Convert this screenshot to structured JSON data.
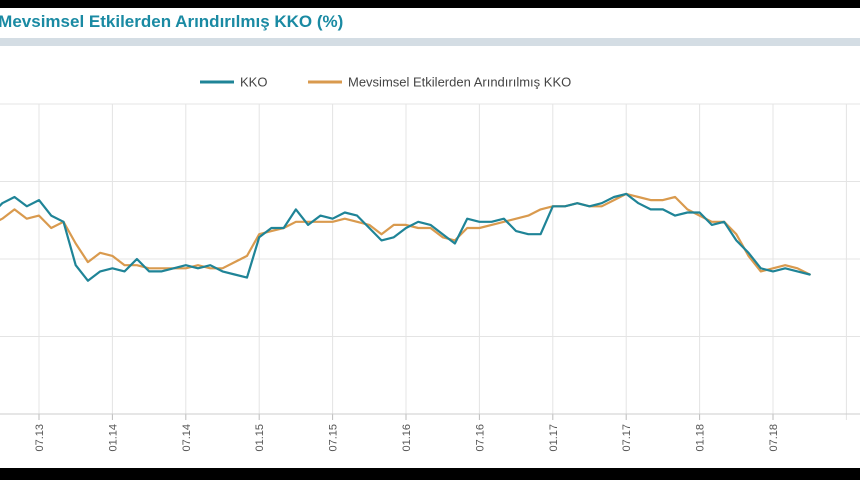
{
  "colors": {
    "kko": "#1f8497",
    "sa_kko": "#d99a4e",
    "title": "#1a8aa3",
    "grid": "#e4e4e4"
  },
  "chart_data": {
    "type": "line",
    "title": "e Mevsimsel Etkilerden Arındırılmış KKO (%)",
    "legend_placement": "top-center",
    "grid": true,
    "tick_labels": [
      "07.13",
      "01.14",
      "07.14",
      "01.15",
      "07.15",
      "01.16",
      "07.16",
      "01.17",
      "07.17",
      "01.18",
      "07.18"
    ],
    "x_start": "2013-01",
    "ylim": [
      0,
      1
    ],
    "series": [
      {
        "name": "KKO",
        "values": [
          0.49,
          0.6,
          0.64,
          0.68,
          0.7,
          0.67,
          0.69,
          0.64,
          0.62,
          0.48,
          0.43,
          0.46,
          0.47,
          0.46,
          0.5,
          0.46,
          0.46,
          0.47,
          0.48,
          0.47,
          0.48,
          0.46,
          0.45,
          0.44,
          0.57,
          0.6,
          0.6,
          0.66,
          0.61,
          0.64,
          0.63,
          0.65,
          0.64,
          0.6,
          0.56,
          0.57,
          0.6,
          0.62,
          0.61,
          0.58,
          0.55,
          0.63,
          0.62,
          0.62,
          0.63,
          0.59,
          0.58,
          0.58,
          0.67,
          0.67,
          0.68,
          0.67,
          0.68,
          0.7,
          0.71,
          0.68,
          0.66,
          0.66,
          0.64,
          0.65,
          0.65,
          0.61,
          0.62,
          0.56,
          0.52,
          0.47,
          0.46,
          0.47,
          0.46,
          0.45
        ]
      },
      {
        "name": "Mevsimsel Etkilerden Arındırılmış KKO",
        "values": [
          0.5,
          0.58,
          0.61,
          0.63,
          0.66,
          0.63,
          0.64,
          0.6,
          0.62,
          0.55,
          0.49,
          0.52,
          0.51,
          0.48,
          0.48,
          0.47,
          0.47,
          0.47,
          0.47,
          0.48,
          0.47,
          0.47,
          0.49,
          0.51,
          0.58,
          0.59,
          0.6,
          0.62,
          0.62,
          0.62,
          0.62,
          0.63,
          0.62,
          0.61,
          0.58,
          0.61,
          0.61,
          0.6,
          0.6,
          0.57,
          0.56,
          0.6,
          0.6,
          0.61,
          0.62,
          0.63,
          0.64,
          0.66,
          0.67,
          0.67,
          0.68,
          0.67,
          0.67,
          0.69,
          0.71,
          0.7,
          0.69,
          0.69,
          0.7,
          0.66,
          0.64,
          0.62,
          0.62,
          0.58,
          0.51,
          0.46,
          0.47,
          0.48,
          0.47,
          0.45
        ]
      }
    ]
  }
}
